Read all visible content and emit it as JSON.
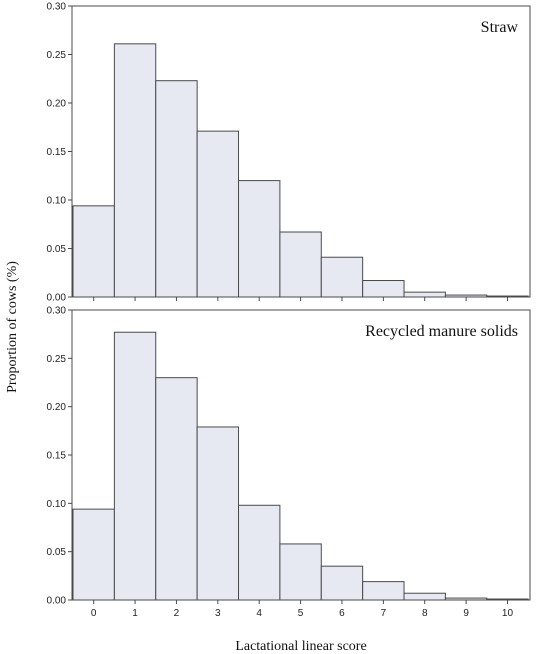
{
  "chart_data": {
    "type": "bar",
    "ylabel": "Proportion of cows (%)",
    "xlabel": "Lactational linear score",
    "categories": [
      "0",
      "1",
      "2",
      "3",
      "4",
      "5",
      "6",
      "7",
      "8",
      "9",
      "10"
    ],
    "ylim": [
      0,
      0.3
    ],
    "yticks": [
      "0.00",
      "0.05",
      "0.10",
      "0.15",
      "0.20",
      "0.25",
      "0.30"
    ],
    "bar_color": "#e6e9f2",
    "edge_color": "#4a4a4a",
    "panels": [
      {
        "title": "Straw",
        "values": [
          0.094,
          0.261,
          0.223,
          0.171,
          0.12,
          0.067,
          0.041,
          0.017,
          0.005,
          0.002,
          0.001
        ]
      },
      {
        "title": "Recycled manure solids",
        "values": [
          0.094,
          0.277,
          0.23,
          0.179,
          0.098,
          0.058,
          0.035,
          0.019,
          0.007,
          0.002,
          0.001
        ]
      }
    ]
  }
}
